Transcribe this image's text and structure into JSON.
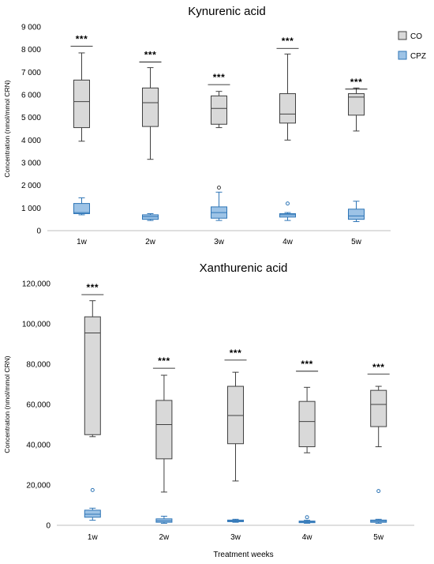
{
  "legend": {
    "items": [
      {
        "name": "CO",
        "fill": "#d9d9d9",
        "stroke": "#404040"
      },
      {
        "name": "CPZ",
        "fill": "#9dc3e6",
        "stroke": "#2e75b6"
      }
    ]
  },
  "chart_data": [
    {
      "type": "box",
      "title": "Kynurenic acid",
      "ylabel": "Concentration (nmol/mmol CRN)",
      "xlabel": "",
      "categories": [
        "1w",
        "2w",
        "3w",
        "4w",
        "5w"
      ],
      "ylim": [
        0,
        9000
      ],
      "yticks": [
        0,
        1000,
        2000,
        3000,
        4000,
        5000,
        6000,
        7000,
        8000,
        9000
      ],
      "ytick_labels": [
        "0",
        "1 000",
        "2 000",
        "3 000",
        "4 000",
        "5 000",
        "6 000",
        "7 000",
        "8 000",
        "9 000"
      ],
      "grid": false,
      "significance": [
        "***",
        "***",
        "***",
        "***",
        "***"
      ],
      "series": [
        {
          "name": "CO",
          "boxes": [
            {
              "min": 3950,
              "q1": 4550,
              "median": 5700,
              "q3": 6650,
              "max": 7850,
              "outliers": []
            },
            {
              "min": 3150,
              "q1": 4600,
              "median": 5650,
              "q3": 6300,
              "max": 7200,
              "outliers": []
            },
            {
              "min": 4550,
              "q1": 4700,
              "median": 5400,
              "q3": 5950,
              "max": 6150,
              "outliers": [
                1900
              ]
            },
            {
              "min": 4000,
              "q1": 4750,
              "median": 5150,
              "q3": 6050,
              "max": 7800,
              "outliers": []
            },
            {
              "min": 4400,
              "q1": 5100,
              "median": 5900,
              "q3": 6050,
              "max": 6300,
              "outliers": []
            }
          ]
        },
        {
          "name": "CPZ",
          "boxes": [
            {
              "min": 700,
              "q1": 750,
              "median": 800,
              "q3": 1200,
              "max": 1450,
              "outliers": []
            },
            {
              "min": 450,
              "q1": 500,
              "median": 620,
              "q3": 700,
              "max": 750,
              "outliers": []
            },
            {
              "min": 450,
              "q1": 550,
              "median": 800,
              "q3": 1050,
              "max": 1700,
              "outliers": []
            },
            {
              "min": 450,
              "q1": 600,
              "median": 700,
              "q3": 750,
              "max": 800,
              "outliers": [
                1200
              ]
            },
            {
              "min": 400,
              "q1": 500,
              "median": 650,
              "q3": 950,
              "max": 1300,
              "outliers": []
            }
          ]
        }
      ]
    },
    {
      "type": "box",
      "title": "Xanthurenic acid",
      "ylabel": "Concentration (nmol/mmol CRN)",
      "xlabel": "Treatment weeks",
      "categories": [
        "1w",
        "2w",
        "3w",
        "4w",
        "5w"
      ],
      "ylim": [
        0,
        120000
      ],
      "yticks": [
        0,
        20000,
        40000,
        60000,
        80000,
        100000,
        120000
      ],
      "ytick_labels": [
        "0",
        "20,000",
        "40,000",
        "60,000",
        "80,000",
        "100,000",
        "120,000"
      ],
      "grid": false,
      "significance": [
        "***",
        "***",
        "***",
        "***",
        "***"
      ],
      "series": [
        {
          "name": "CO",
          "boxes": [
            {
              "min": 44000,
              "q1": 45000,
              "median": 95500,
              "q3": 103500,
              "max": 111500,
              "outliers": []
            },
            {
              "min": 16500,
              "q1": 33000,
              "median": 50000,
              "q3": 62000,
              "max": 74500,
              "outliers": []
            },
            {
              "min": 22000,
              "q1": 40500,
              "median": 54500,
              "q3": 69000,
              "max": 76000,
              "outliers": []
            },
            {
              "min": 36000,
              "q1": 39000,
              "median": 51500,
              "q3": 61500,
              "max": 68500,
              "outliers": []
            },
            {
              "min": 39000,
              "q1": 49000,
              "median": 60000,
              "q3": 67000,
              "max": 69000,
              "outliers": []
            }
          ]
        },
        {
          "name": "CPZ",
          "boxes": [
            {
              "min": 2500,
              "q1": 4000,
              "median": 5500,
              "q3": 7500,
              "max": 8500,
              "outliers": [
                17500
              ]
            },
            {
              "min": 1000,
              "q1": 1500,
              "median": 2200,
              "q3": 3200,
              "max": 4500,
              "outliers": []
            },
            {
              "min": 1500,
              "q1": 1800,
              "median": 2200,
              "q3": 2600,
              "max": 3000,
              "outliers": []
            },
            {
              "min": 1000,
              "q1": 1300,
              "median": 1700,
              "q3": 2100,
              "max": 2500,
              "outliers": [
                4000
              ]
            },
            {
              "min": 1000,
              "q1": 1500,
              "median": 2000,
              "q3": 2600,
              "max": 3000,
              "outliers": [
                17000
              ]
            }
          ]
        }
      ]
    }
  ]
}
